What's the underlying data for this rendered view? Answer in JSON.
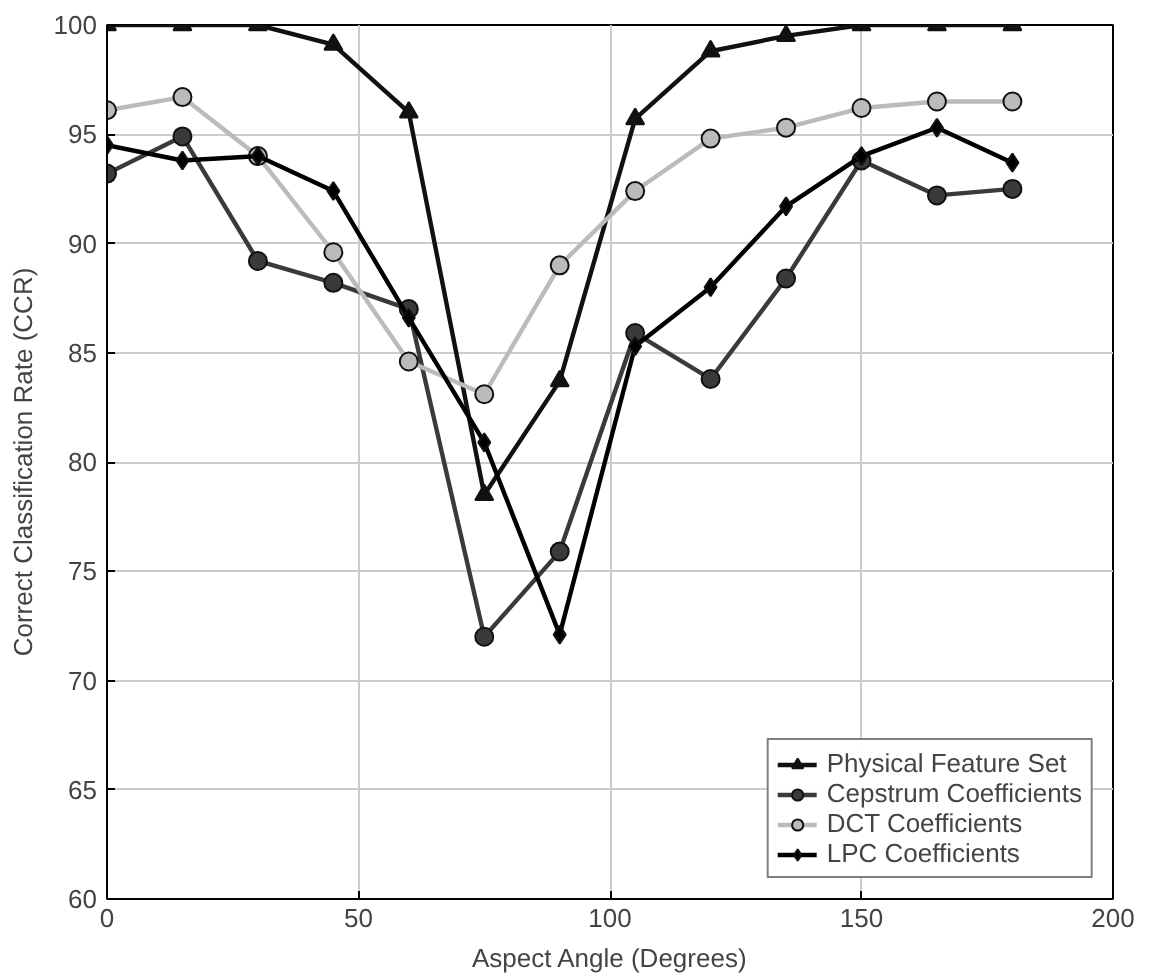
{
  "chart_data": {
    "type": "line",
    "xlabel": "Aspect Angle (Degrees)",
    "ylabel": "Correct Classification Rate (CCR)",
    "x": [
      0,
      15,
      30,
      45,
      60,
      75,
      90,
      105,
      120,
      135,
      150,
      165,
      180
    ],
    "xlim": [
      0,
      200
    ],
    "xticks": [
      0,
      50,
      100,
      150,
      200
    ],
    "ylim": [
      60,
      100
    ],
    "yticks": [
      60,
      65,
      70,
      75,
      80,
      85,
      90,
      95,
      100
    ],
    "grid": true,
    "legend": "bottom right",
    "series": [
      {
        "name": "Physical Feature Set",
        "color": "#111111",
        "marker": "triangle",
        "values": [
          100,
          100,
          100,
          99.1,
          96,
          78.5,
          83.7,
          95.7,
          98.8,
          99.5,
          100,
          100,
          100
        ]
      },
      {
        "name": "Cepstrum Coefficients",
        "color": "#3a3a3a",
        "marker": "circle",
        "values": [
          93.2,
          94.9,
          89.2,
          88.2,
          87,
          72,
          75.9,
          85.9,
          83.8,
          88.4,
          93.8,
          92.2,
          92.5
        ]
      },
      {
        "name": "DCT Coefficients",
        "color": "#bbbbbb",
        "marker": "circle",
        "values": [
          96.1,
          96.7,
          94,
          89.6,
          84.6,
          83.1,
          89,
          92.4,
          94.8,
          95.3,
          96.2,
          96.5,
          96.5
        ]
      },
      {
        "name": "LPC Coefficients",
        "color": "#000000",
        "marker": "diamond",
        "values": [
          94.5,
          93.8,
          94,
          92.4,
          86.6,
          80.9,
          72.1,
          85.3,
          88,
          91.7,
          94,
          95.3,
          93.7
        ]
      }
    ]
  }
}
